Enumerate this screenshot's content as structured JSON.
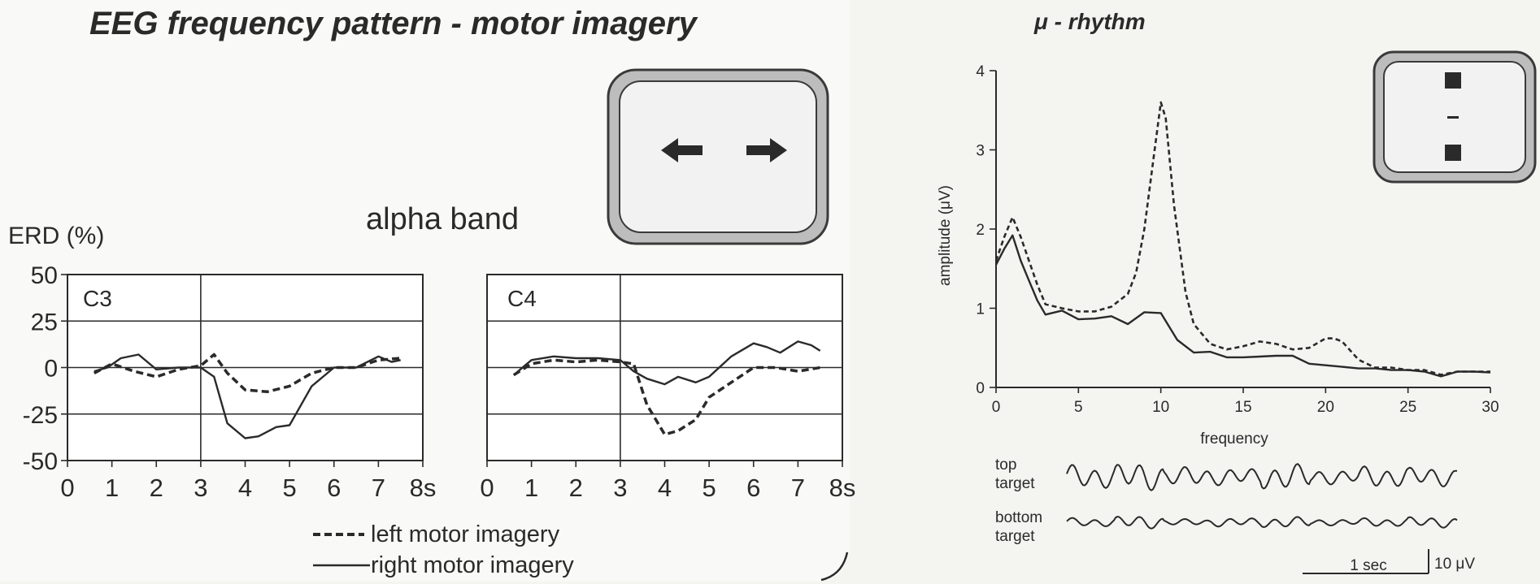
{
  "title": "EEG frequency pattern - motor imagery",
  "band_label": "alpha band",
  "erd_ylabel": "ERD (%)",
  "mu_title": "μ - rhythm",
  "colors": {
    "ink": "#2a2a2a",
    "panel_bg": "#ffffff",
    "monitor_bezel": "#b9b9b9",
    "monitor_face": "#f0f0f0"
  },
  "icons": {
    "left_monitor": [
      "arrow-left-icon",
      "arrow-right-icon"
    ],
    "right_monitor": [
      "square-icon",
      "dash-icon",
      "square-icon"
    ]
  },
  "legend": {
    "dashed": "left motor imagery",
    "solid": "right motor imagery"
  },
  "scale_bar": {
    "time": "1 sec",
    "amplitude": "10 μV"
  },
  "traces": {
    "top_label": [
      "top",
      "target"
    ],
    "bottom_label": [
      "bottom",
      "target"
    ]
  },
  "chart_data": [
    {
      "type": "line",
      "panel": "C3",
      "ylabel": "ERD (%)",
      "ylim": [
        -50,
        50
      ],
      "yticks": [
        "50",
        "25",
        "0",
        "-25",
        "-50"
      ],
      "xlim": [
        0,
        8
      ],
      "xticks": [
        "0",
        "1",
        "2",
        "3",
        "4",
        "5",
        "6",
        "7",
        "8s"
      ],
      "series": [
        {
          "name": "left motor imagery",
          "style": "dashed",
          "x": [
            0.6,
            1.0,
            1.5,
            2.0,
            2.5,
            3.0,
            3.3,
            3.6,
            4.0,
            4.5,
            5.0,
            5.5,
            6.0,
            6.5,
            7.0,
            7.5
          ],
          "y": [
            -3,
            2,
            -2,
            -5,
            -1,
            1,
            7,
            -3,
            -12,
            -13,
            -10,
            -3,
            0,
            0,
            4,
            5
          ]
        },
        {
          "name": "right motor imagery",
          "style": "solid",
          "x": [
            0.6,
            0.9,
            1.2,
            1.6,
            2.0,
            2.5,
            3.0,
            3.3,
            3.6,
            4.0,
            4.3,
            4.7,
            5.0,
            5.5,
            6.0,
            6.5,
            7.0,
            7.3,
            7.5
          ],
          "y": [
            -2,
            0,
            5,
            7,
            -1,
            0,
            0,
            -5,
            -30,
            -38,
            -37,
            -32,
            -31,
            -10,
            0,
            0,
            6,
            3,
            4
          ]
        }
      ]
    },
    {
      "type": "line",
      "panel": "C4",
      "xlim": [
        0,
        8
      ],
      "ylim": [
        -50,
        50
      ],
      "xticks": [
        "0",
        "1",
        "2",
        "3",
        "4",
        "5",
        "6",
        "7",
        "8s"
      ],
      "series": [
        {
          "name": "left motor imagery",
          "style": "dashed",
          "x": [
            0.6,
            1.0,
            1.5,
            2.0,
            2.5,
            3.0,
            3.3,
            3.6,
            4.0,
            4.3,
            4.7,
            5.0,
            5.5,
            6.0,
            6.5,
            7.0,
            7.5
          ],
          "y": [
            -4,
            2,
            4,
            3,
            4,
            3,
            2,
            -20,
            -36,
            -34,
            -28,
            -16,
            -8,
            0,
            0,
            -2,
            0
          ]
        },
        {
          "name": "right motor imagery",
          "style": "solid",
          "x": [
            0.6,
            1.0,
            1.5,
            2.0,
            2.5,
            3.0,
            3.3,
            3.6,
            4.0,
            4.3,
            4.7,
            5.0,
            5.5,
            6.0,
            6.3,
            6.6,
            7.0,
            7.3,
            7.5
          ],
          "y": [
            -4,
            4,
            6,
            5,
            5,
            4,
            -2,
            -6,
            -9,
            -5,
            -8,
            -5,
            6,
            13,
            11,
            8,
            14,
            12,
            9
          ]
        }
      ]
    },
    {
      "type": "line",
      "panel": "μ - rhythm",
      "xlabel": "frequency",
      "ylabel": "amplitude (μV)",
      "xlim": [
        0,
        30
      ],
      "ylim": [
        0,
        4
      ],
      "xticks": [
        "0",
        "5",
        "10",
        "15",
        "20",
        "25",
        "30"
      ],
      "yticks": [
        "0",
        "1",
        "2",
        "3",
        "4"
      ],
      "series": [
        {
          "style": "dashed",
          "x": [
            0,
            0.5,
            1,
            1.5,
            2,
            2.5,
            3,
            4,
            5,
            6,
            7,
            8,
            8.5,
            9,
            9.5,
            10,
            10.3,
            10.8,
            11.5,
            12,
            13,
            14,
            15,
            16,
            17,
            18,
            19,
            20,
            20.5,
            21,
            22,
            23,
            24,
            25,
            26,
            27,
            28,
            29,
            30
          ],
          "y": [
            1.6,
            1.9,
            2.15,
            1.9,
            1.6,
            1.3,
            1.05,
            1.0,
            0.96,
            0.96,
            1.02,
            1.18,
            1.45,
            2.0,
            2.8,
            3.6,
            3.4,
            2.3,
            1.2,
            0.8,
            0.55,
            0.48,
            0.52,
            0.58,
            0.55,
            0.48,
            0.5,
            0.62,
            0.62,
            0.58,
            0.35,
            0.25,
            0.25,
            0.22,
            0.22,
            0.16,
            0.2,
            0.2,
            0.2
          ]
        },
        {
          "style": "solid",
          "x": [
            0,
            0.5,
            1,
            1.5,
            2,
            2.5,
            3,
            4,
            5,
            6,
            7,
            8,
            9,
            10,
            11,
            12,
            13,
            14,
            15,
            16,
            17,
            18,
            19,
            20,
            21,
            22,
            23,
            24,
            25,
            26,
            27,
            28,
            29,
            30
          ],
          "y": [
            1.55,
            1.75,
            1.92,
            1.6,
            1.35,
            1.1,
            0.92,
            0.97,
            0.86,
            0.87,
            0.9,
            0.8,
            0.95,
            0.94,
            0.6,
            0.44,
            0.45,
            0.38,
            0.38,
            0.39,
            0.4,
            0.4,
            0.3,
            0.28,
            0.26,
            0.24,
            0.24,
            0.22,
            0.22,
            0.2,
            0.14,
            0.2,
            0.2,
            0.19
          ]
        }
      ]
    }
  ]
}
